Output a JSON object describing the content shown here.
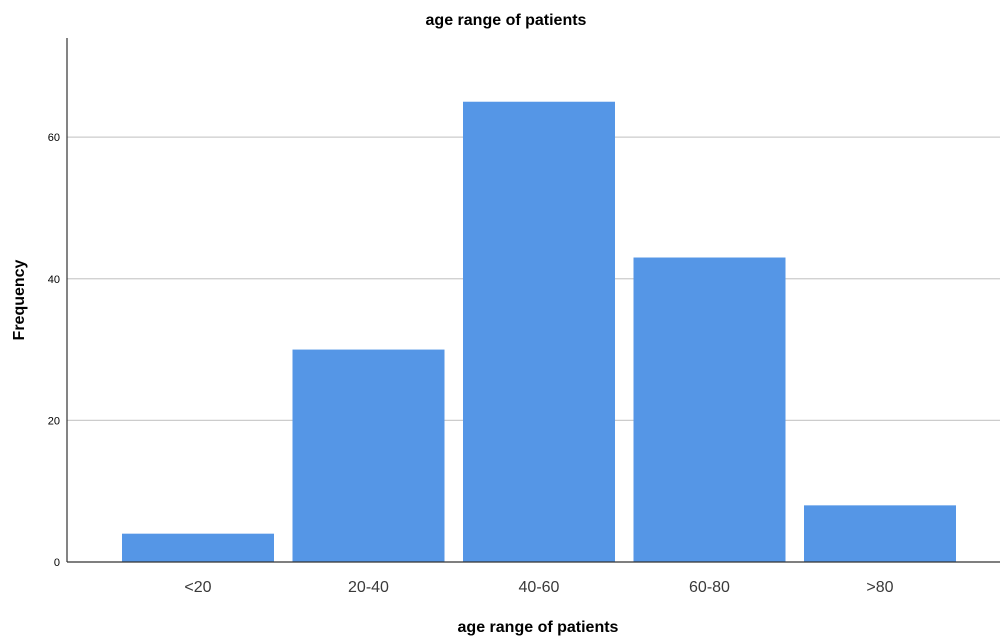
{
  "chart_data": {
    "type": "bar",
    "title": "age range of patients",
    "xlabel": "age range of patients",
    "ylabel": "Frequency",
    "categories": [
      "<20",
      "20-40",
      "40-60",
      "60-80",
      ">80"
    ],
    "values": [
      4,
      30,
      65,
      43,
      8
    ],
    "ylim": [
      0,
      74
    ],
    "yticks": [
      0,
      20,
      40,
      60
    ],
    "grid": true,
    "bar_color": "#5596e6",
    "grid_color": "#cccccc",
    "axis_color": "#333333"
  }
}
